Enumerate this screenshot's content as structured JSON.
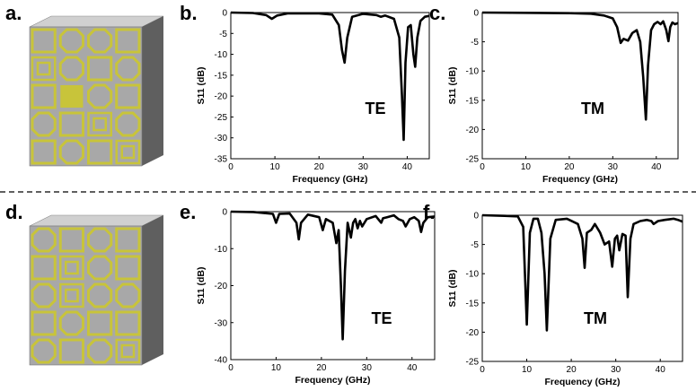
{
  "figure": {
    "panel_labels": [
      "a.",
      "b.",
      "c.",
      "d.",
      "e.",
      "f."
    ]
  },
  "metasurfaces": [
    {
      "id": "a",
      "name": "metasurface-a",
      "pattern_color": "#c8c43a",
      "cell_color": "#a8a8a8"
    },
    {
      "id": "d",
      "name": "metasurface-d",
      "pattern_color": "#c8c43a",
      "cell_color": "#a8a8a8"
    }
  ],
  "chart_data": [
    {
      "id": "b",
      "type": "line",
      "annotation": "TE",
      "xlabel": "Frequency (GHz)",
      "ylabel": "S11 (dB)",
      "xlim": [
        0,
        45
      ],
      "ylim": [
        -35,
        0
      ],
      "xticks": [
        0,
        10,
        20,
        30,
        40
      ],
      "yticks": [
        0,
        -5,
        -10,
        -15,
        -20,
        -25,
        -30,
        -35
      ],
      "series": [
        {
          "name": "S11",
          "x": [
            0,
            5,
            8,
            9.3,
            10.5,
            13,
            20,
            23,
            24.5,
            25.2,
            25.8,
            26.4,
            27.5,
            30,
            33,
            34,
            35,
            37,
            38.2,
            38.8,
            39.2,
            39.6,
            40.2,
            40.8,
            41.4,
            41.8,
            42.3,
            43,
            44,
            45
          ],
          "y": [
            0,
            -0.1,
            -0.6,
            -1.5,
            -0.7,
            -0.2,
            -0.2,
            -0.5,
            -3,
            -9,
            -12,
            -6,
            -1,
            -0.3,
            -0.6,
            -1,
            -0.7,
            -1.5,
            -6,
            -20,
            -30.5,
            -12,
            -3.5,
            -3,
            -10,
            -13,
            -6,
            -2,
            -1,
            -0.8
          ]
        }
      ]
    },
    {
      "id": "c",
      "type": "line",
      "annotation": "TM",
      "xlabel": "Frequency (GHz)",
      "ylabel": "S11 (dB)",
      "xlim": [
        0,
        45
      ],
      "ylim": [
        -25,
        0
      ],
      "xticks": [
        0,
        10,
        20,
        30,
        40
      ],
      "yticks": [
        0,
        -5,
        -10,
        -15,
        -20,
        -25
      ],
      "series": [
        {
          "name": "S11",
          "x": [
            0,
            10,
            20,
            25,
            28,
            30,
            31,
            31.8,
            32.5,
            33.5,
            34.5,
            35.5,
            36.3,
            37,
            37.6,
            38.1,
            38.8,
            39.5,
            40.3,
            41,
            41.6,
            42.3,
            42.8,
            43.2,
            43.7,
            44.3,
            45
          ],
          "y": [
            0,
            -0.05,
            -0.1,
            -0.2,
            -0.5,
            -1,
            -2.5,
            -5.2,
            -4.5,
            -4.8,
            -3.5,
            -3,
            -5,
            -11,
            -18.3,
            -9,
            -3,
            -2,
            -1.6,
            -2,
            -1.5,
            -3,
            -4.9,
            -2.5,
            -1.7,
            -2,
            -1.8
          ]
        }
      ]
    },
    {
      "id": "e",
      "type": "line",
      "annotation": "TE",
      "xlabel": "Frequency (GHz)",
      "ylabel": "S11 (dB)",
      "xlim": [
        0,
        45
      ],
      "ylim": [
        -40,
        0
      ],
      "xticks": [
        0,
        10,
        20,
        30,
        40
      ],
      "yticks": [
        0,
        -10,
        -20,
        -30,
        -40
      ],
      "series": [
        {
          "name": "S11",
          "x": [
            0,
            5,
            9.3,
            10,
            10.7,
            13,
            14.5,
            15,
            15.5,
            17,
            19.5,
            20.3,
            21,
            22.5,
            23.3,
            23.8,
            24.3,
            24.7,
            25.2,
            25.8,
            26.5,
            27,
            27.5,
            28,
            28.5,
            29,
            30,
            32,
            33.2,
            33.6,
            34.5,
            36,
            37,
            38,
            38.6,
            39.5,
            40.5,
            41.5,
            42,
            42.5,
            43.5,
            45
          ],
          "y": [
            0,
            -0.1,
            -0.6,
            -3,
            -0.6,
            -0.5,
            -3,
            -7.5,
            -3,
            -0.8,
            -1.5,
            -5,
            -2,
            -3,
            -8.5,
            -5,
            -20,
            -34.5,
            -16,
            -3,
            -7,
            -3,
            -2,
            -4.5,
            -2.5,
            -4,
            -2,
            -1.2,
            -3,
            -1.8,
            -1.5,
            -1,
            -2,
            -2.5,
            -4,
            -2,
            -1.5,
            -2.5,
            -5.5,
            -3,
            -1.5,
            -1.3
          ]
        }
      ]
    },
    {
      "id": "f",
      "type": "line",
      "annotation": "TM",
      "xlabel": "Frequency (GHz)",
      "ylabel": "S11 (dB)",
      "xlim": [
        0,
        45
      ],
      "ylim": [
        -25,
        0
      ],
      "xticks": [
        0,
        10,
        20,
        30,
        40
      ],
      "yticks": [
        0,
        -5,
        -10,
        -15,
        -20,
        -25
      ],
      "series": [
        {
          "name": "S11",
          "x": [
            0,
            5,
            8,
            9.2,
            10,
            10.7,
            11.5,
            12.5,
            13.3,
            14,
            14.5,
            15.3,
            16.5,
            19,
            21.5,
            22.5,
            23,
            23.5,
            24.5,
            25.3,
            26.5,
            27.5,
            28.5,
            29.2,
            29.8,
            30.3,
            30.8,
            31.5,
            32.2,
            32.7,
            33.3,
            34,
            35.5,
            37,
            38,
            38.5,
            39.5,
            41,
            42,
            43,
            44,
            45
          ],
          "y": [
            0,
            -0.1,
            -0.2,
            -2,
            -18.7,
            -3,
            -0.6,
            -0.6,
            -3,
            -10,
            -19.7,
            -4,
            -0.8,
            -0.6,
            -1.5,
            -4,
            -9,
            -3,
            -2.5,
            -1.5,
            -3,
            -5,
            -4.5,
            -8.8,
            -4,
            -3.5,
            -6,
            -3.2,
            -3.5,
            -14,
            -4,
            -1.5,
            -1,
            -0.8,
            -1,
            -1.5,
            -1,
            -0.8,
            -0.7,
            -0.6,
            -0.8,
            -1.1
          ]
        }
      ]
    }
  ]
}
